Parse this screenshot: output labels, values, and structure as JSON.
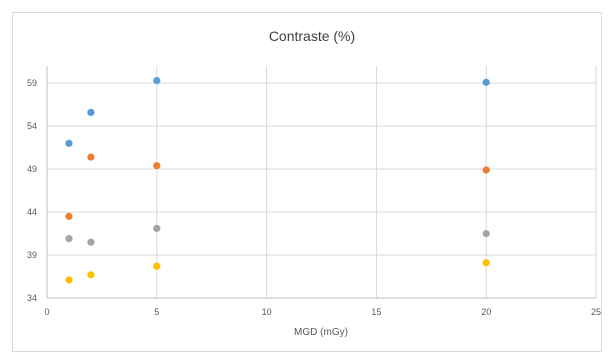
{
  "chart_data": {
    "type": "scatter",
    "title": "Contraste (%)",
    "xlabel": "MGD (mGy)",
    "ylabel": "",
    "xlim": [
      0,
      25
    ],
    "ylim": [
      34,
      61
    ],
    "x_ticks": [
      0,
      5,
      10,
      15,
      20,
      25
    ],
    "y_ticks": [
      34,
      39,
      44,
      49,
      54,
      59
    ],
    "grid": true,
    "legend": "none",
    "series": [
      {
        "color": "#5b9bd5",
        "points": [
          {
            "x": 1,
            "y": 52.0
          },
          {
            "x": 2,
            "y": 55.6
          },
          {
            "x": 5,
            "y": 59.3
          },
          {
            "x": 20,
            "y": 59.1
          }
        ]
      },
      {
        "color": "#ed7d31",
        "points": [
          {
            "x": 1,
            "y": 43.5
          },
          {
            "x": 2,
            "y": 50.4
          },
          {
            "x": 5,
            "y": 49.4
          },
          {
            "x": 20,
            "y": 48.9
          }
        ]
      },
      {
        "color": "#a5a5a5",
        "points": [
          {
            "x": 1,
            "y": 40.9
          },
          {
            "x": 2,
            "y": 40.5
          },
          {
            "x": 5,
            "y": 42.1
          },
          {
            "x": 20,
            "y": 41.5
          }
        ]
      },
      {
        "color": "#ffc000",
        "points": [
          {
            "x": 1,
            "y": 36.1
          },
          {
            "x": 2,
            "y": 36.7
          },
          {
            "x": 5,
            "y": 37.7
          },
          {
            "x": 20,
            "y": 38.1
          }
        ]
      }
    ]
  }
}
